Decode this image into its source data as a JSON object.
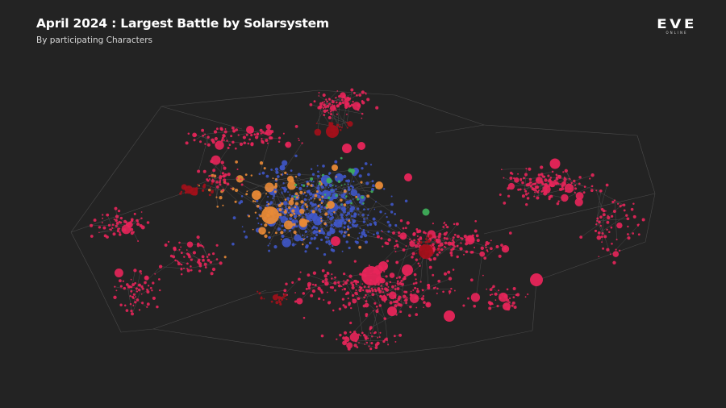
{
  "header": {
    "title": "April 2024 : Largest Battle by Solarsystem",
    "subtitle": "By participating Characters"
  },
  "logo": {
    "brand": "EVE",
    "tagline": "ONLINE"
  },
  "palette": {
    "background": "#232323",
    "connections": "#4a4a4a",
    "red": "#e8255a",
    "dark_red": "#a3101a",
    "blue": "#3f57c8",
    "orange": "#e98a36",
    "green": "#3fae5a"
  }
}
